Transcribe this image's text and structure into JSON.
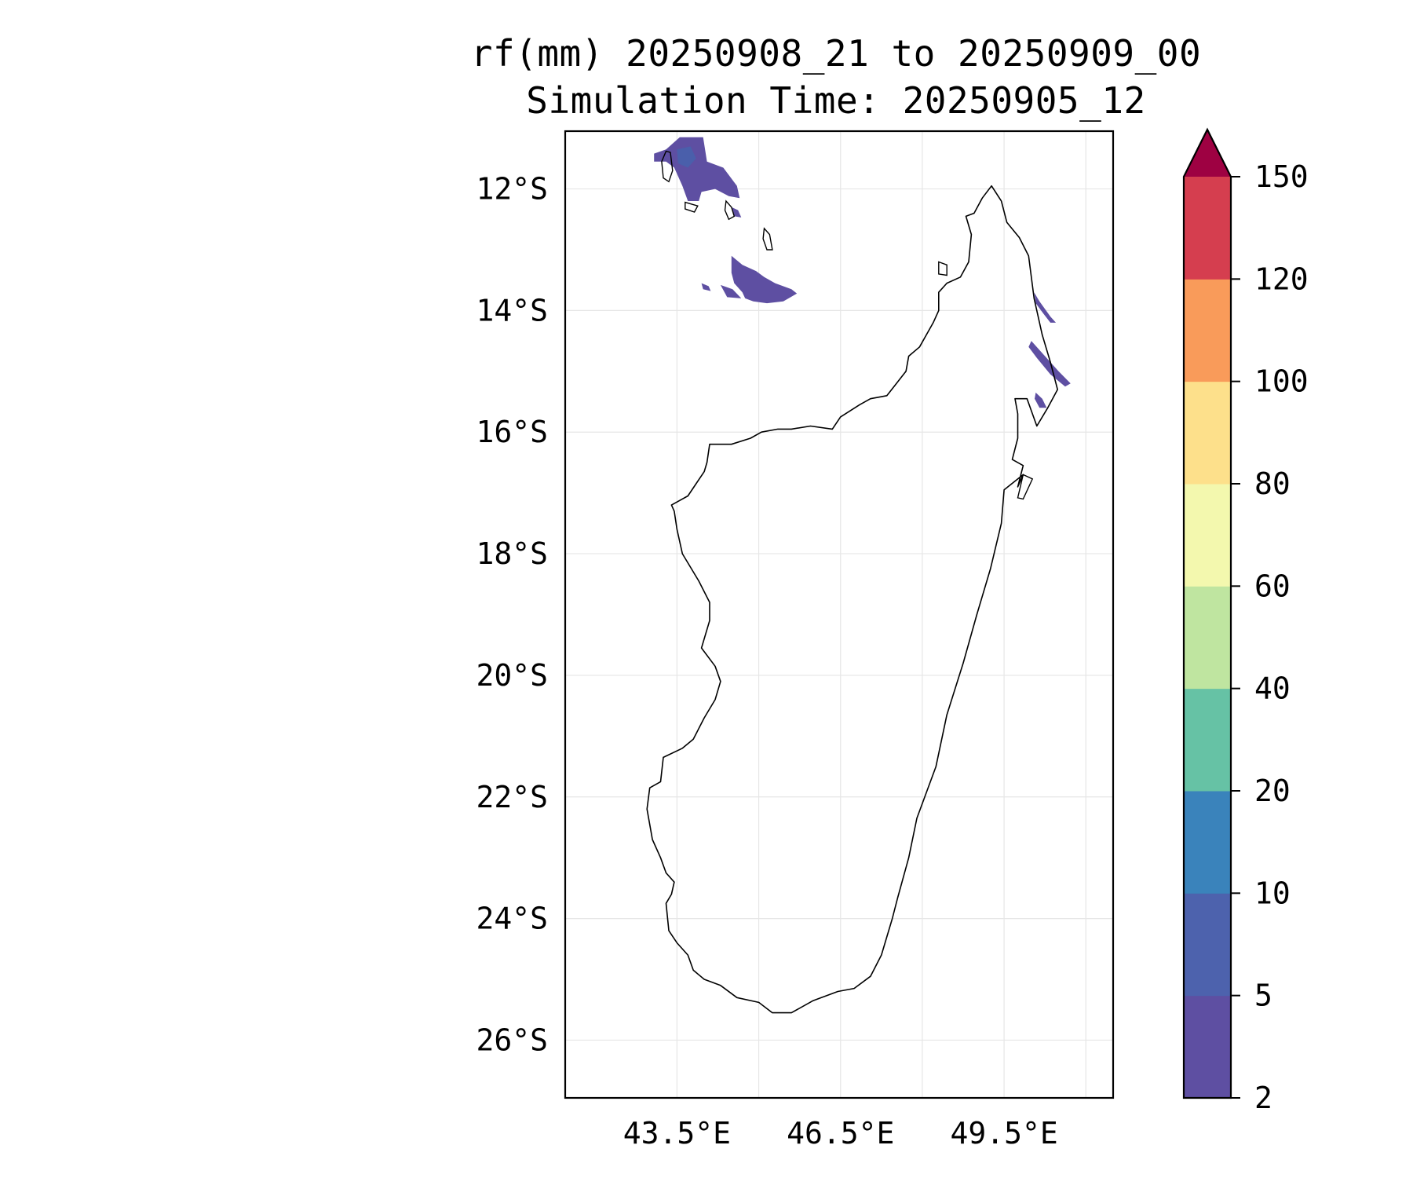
{
  "title": {
    "line1": "rf(mm) 20250908_21 to 20250909_00",
    "line2": "Simulation Time: 20250905_12"
  },
  "map": {
    "extent": {
      "lon_min": 41.45,
      "lon_max": 51.5,
      "lat_min": -26.95,
      "lat_max": -11.05
    },
    "lat_ticks": [
      {
        "value": -12,
        "label": "12°S"
      },
      {
        "value": -14,
        "label": "14°S"
      },
      {
        "value": -16,
        "label": "16°S"
      },
      {
        "value": -18,
        "label": "18°S"
      },
      {
        "value": -20,
        "label": "20°S"
      },
      {
        "value": -22,
        "label": "22°S"
      },
      {
        "value": -24,
        "label": "24°S"
      },
      {
        "value": -26,
        "label": "26°S"
      }
    ],
    "lon_ticks": [
      {
        "value": 43.5,
        "label": "43.5°E"
      },
      {
        "value": 46.5,
        "label": "46.5°E"
      },
      {
        "value": 49.5,
        "label": "49.5°E"
      }
    ],
    "grid_lons": [
      43.5,
      45.0,
      46.5,
      48.0,
      49.5,
      51.0
    ],
    "coastline": [
      [
        43.4,
        -17.2
      ],
      [
        43.45,
        -17.3
      ],
      [
        43.5,
        -17.6
      ],
      [
        43.6,
        -18.0
      ],
      [
        43.9,
        -18.45
      ],
      [
        44.1,
        -18.8
      ],
      [
        44.1,
        -19.1
      ],
      [
        43.95,
        -19.55
      ],
      [
        44.2,
        -19.85
      ],
      [
        44.3,
        -20.1
      ],
      [
        44.2,
        -20.4
      ],
      [
        44.0,
        -20.7
      ],
      [
        43.8,
        -21.05
      ],
      [
        43.6,
        -21.2
      ],
      [
        43.25,
        -21.35
      ],
      [
        43.2,
        -21.75
      ],
      [
        43.0,
        -21.85
      ],
      [
        42.95,
        -22.2
      ],
      [
        43.05,
        -22.7
      ],
      [
        43.2,
        -23.0
      ],
      [
        43.3,
        -23.25
      ],
      [
        43.45,
        -23.4
      ],
      [
        43.4,
        -23.6
      ],
      [
        43.3,
        -23.75
      ],
      [
        43.35,
        -24.2
      ],
      [
        43.5,
        -24.4
      ],
      [
        43.7,
        -24.6
      ],
      [
        43.8,
        -24.85
      ],
      [
        44.0,
        -25.0
      ],
      [
        44.3,
        -25.1
      ],
      [
        44.6,
        -25.3
      ],
      [
        45.0,
        -25.38
      ],
      [
        45.25,
        -25.55
      ],
      [
        45.6,
        -25.55
      ],
      [
        46.0,
        -25.35
      ],
      [
        46.45,
        -25.2
      ],
      [
        46.75,
        -25.15
      ],
      [
        47.05,
        -24.95
      ],
      [
        47.25,
        -24.6
      ],
      [
        47.45,
        -24.0
      ],
      [
        47.55,
        -23.65
      ],
      [
        47.75,
        -23.0
      ],
      [
        47.9,
        -22.35
      ],
      [
        48.25,
        -21.5
      ],
      [
        48.45,
        -20.65
      ],
      [
        48.75,
        -19.8
      ],
      [
        49.0,
        -19.0
      ],
      [
        49.25,
        -18.25
      ],
      [
        49.45,
        -17.5
      ],
      [
        49.5,
        -16.95
      ],
      [
        49.85,
        -16.7
      ],
      [
        49.75,
        -16.9
      ],
      [
        49.85,
        -16.55
      ],
      [
        49.65,
        -16.45
      ],
      [
        49.75,
        -16.1
      ],
      [
        49.75,
        -15.7
      ],
      [
        49.7,
        -15.45
      ],
      [
        49.92,
        -15.45
      ],
      [
        50.1,
        -15.9
      ],
      [
        50.3,
        -15.6
      ],
      [
        50.48,
        -15.3
      ],
      [
        50.35,
        -14.85
      ],
      [
        50.2,
        -14.4
      ],
      [
        50.05,
        -13.8
      ],
      [
        49.95,
        -13.1
      ],
      [
        49.78,
        -12.8
      ],
      [
        49.55,
        -12.55
      ],
      [
        49.45,
        -12.2
      ],
      [
        49.27,
        -11.95
      ],
      [
        49.1,
        -12.15
      ],
      [
        48.95,
        -12.4
      ],
      [
        48.8,
        -12.45
      ],
      [
        48.9,
        -12.75
      ],
      [
        48.85,
        -13.2
      ],
      [
        48.7,
        -13.45
      ],
      [
        48.45,
        -13.55
      ],
      [
        48.3,
        -13.7
      ],
      [
        48.3,
        -14.0
      ],
      [
        48.2,
        -14.2
      ],
      [
        47.95,
        -14.6
      ],
      [
        47.75,
        -14.75
      ],
      [
        47.7,
        -15.0
      ],
      [
        47.35,
        -15.4
      ],
      [
        47.05,
        -15.45
      ],
      [
        46.85,
        -15.55
      ],
      [
        46.5,
        -15.75
      ],
      [
        46.35,
        -15.95
      ],
      [
        45.95,
        -15.9
      ],
      [
        45.6,
        -15.95
      ],
      [
        45.35,
        -15.95
      ],
      [
        45.05,
        -16.0
      ],
      [
        44.85,
        -16.1
      ],
      [
        44.5,
        -16.2
      ],
      [
        44.25,
        -16.2
      ],
      [
        44.1,
        -16.2
      ],
      [
        44.05,
        -16.5
      ],
      [
        44.0,
        -16.65
      ],
      [
        43.85,
        -16.85
      ],
      [
        43.7,
        -17.05
      ],
      [
        43.4,
        -17.2
      ]
    ],
    "coast_islets": [
      [
        [
          43.3,
          -11.38
        ],
        [
          43.38,
          -11.4
        ],
        [
          43.42,
          -11.7
        ],
        [
          43.35,
          -11.88
        ],
        [
          43.25,
          -11.82
        ],
        [
          43.22,
          -11.55
        ],
        [
          43.3,
          -11.38
        ]
      ],
      [
        [
          43.65,
          -12.22
        ],
        [
          43.88,
          -12.28
        ],
        [
          43.82,
          -12.38
        ],
        [
          43.65,
          -12.33
        ],
        [
          43.65,
          -12.22
        ]
      ],
      [
        [
          44.4,
          -12.2
        ],
        [
          44.5,
          -12.3
        ],
        [
          44.55,
          -12.45
        ],
        [
          44.45,
          -12.5
        ],
        [
          44.38,
          -12.35
        ],
        [
          44.4,
          -12.2
        ]
      ],
      [
        [
          45.1,
          -12.65
        ],
        [
          45.2,
          -12.75
        ],
        [
          45.25,
          -13.0
        ],
        [
          45.15,
          -13.0
        ],
        [
          45.08,
          -12.82
        ],
        [
          45.1,
          -12.65
        ]
      ],
      [
        [
          48.3,
          -13.2
        ],
        [
          48.45,
          -13.25
        ],
        [
          48.45,
          -13.42
        ],
        [
          48.3,
          -13.4
        ],
        [
          48.3,
          -13.2
        ]
      ],
      [
        [
          49.85,
          -16.7
        ],
        [
          50.02,
          -16.77
        ],
        [
          49.85,
          -17.1
        ],
        [
          49.75,
          -17.08
        ],
        [
          49.85,
          -16.7
        ]
      ]
    ],
    "rain_shapes": [
      {
        "color": "#5e4fa2",
        "points": [
          [
            43.08,
            -11.42
          ],
          [
            43.3,
            -11.35
          ],
          [
            43.55,
            -11.15
          ],
          [
            43.98,
            -11.15
          ],
          [
            44.05,
            -11.55
          ],
          [
            44.35,
            -11.65
          ],
          [
            44.6,
            -11.95
          ],
          [
            44.65,
            -12.15
          ],
          [
            44.45,
            -12.12
          ],
          [
            44.2,
            -12.0
          ],
          [
            43.95,
            -12.05
          ],
          [
            43.9,
            -12.2
          ],
          [
            43.7,
            -12.2
          ],
          [
            43.6,
            -11.95
          ],
          [
            43.45,
            -11.65
          ],
          [
            43.3,
            -11.55
          ],
          [
            43.08,
            -11.55
          ],
          [
            43.08,
            -11.42
          ]
        ]
      },
      {
        "color": "#4a5fab",
        "points": [
          [
            43.5,
            -11.35
          ],
          [
            43.75,
            -11.3
          ],
          [
            43.85,
            -11.5
          ],
          [
            43.7,
            -11.65
          ],
          [
            43.52,
            -11.58
          ],
          [
            43.5,
            -11.35
          ]
        ]
      },
      {
        "color": "#5e4fa2",
        "points": [
          [
            44.5,
            -12.3
          ],
          [
            44.62,
            -12.35
          ],
          [
            44.68,
            -12.47
          ],
          [
            44.55,
            -12.45
          ],
          [
            44.5,
            -12.3
          ]
        ]
      },
      {
        "color": "#5e4fa2",
        "points": [
          [
            44.5,
            -13.1
          ],
          [
            44.7,
            -13.25
          ],
          [
            44.95,
            -13.35
          ],
          [
            45.1,
            -13.45
          ],
          [
            45.3,
            -13.55
          ],
          [
            45.6,
            -13.65
          ],
          [
            45.7,
            -13.72
          ],
          [
            45.45,
            -13.85
          ],
          [
            45.15,
            -13.88
          ],
          [
            44.9,
            -13.85
          ],
          [
            44.75,
            -13.8
          ],
          [
            44.7,
            -13.7
          ],
          [
            44.55,
            -13.55
          ],
          [
            44.5,
            -13.38
          ],
          [
            44.5,
            -13.1
          ]
        ]
      },
      {
        "color": "#5e4fa2",
        "points": [
          [
            44.3,
            -13.58
          ],
          [
            44.52,
            -13.65
          ],
          [
            44.68,
            -13.8
          ],
          [
            44.42,
            -13.78
          ],
          [
            44.3,
            -13.58
          ]
        ]
      },
      {
        "color": "#5e4fa2",
        "points": [
          [
            43.95,
            -13.55
          ],
          [
            44.08,
            -13.6
          ],
          [
            44.12,
            -13.68
          ],
          [
            43.98,
            -13.65
          ],
          [
            43.95,
            -13.55
          ]
        ]
      },
      {
        "color": "#5e4fa2",
        "points": [
          [
            50.05,
            -13.7
          ],
          [
            50.15,
            -13.85
          ],
          [
            50.35,
            -14.1
          ],
          [
            50.45,
            -14.2
          ],
          [
            50.35,
            -14.2
          ],
          [
            50.22,
            -14.05
          ],
          [
            50.08,
            -13.88
          ],
          [
            50.05,
            -13.7
          ]
        ]
      },
      {
        "color": "#5e4fa2",
        "points": [
          [
            50.0,
            -14.5
          ],
          [
            50.2,
            -14.7
          ],
          [
            50.5,
            -15.0
          ],
          [
            50.72,
            -15.2
          ],
          [
            50.62,
            -15.25
          ],
          [
            50.35,
            -15.05
          ],
          [
            50.1,
            -14.78
          ],
          [
            49.95,
            -14.6
          ],
          [
            50.0,
            -14.5
          ]
        ]
      },
      {
        "color": "#5e4fa2",
        "points": [
          [
            50.08,
            -15.35
          ],
          [
            50.2,
            -15.45
          ],
          [
            50.28,
            -15.6
          ],
          [
            50.15,
            -15.6
          ],
          [
            50.06,
            -15.45
          ],
          [
            50.08,
            -15.35
          ]
        ]
      }
    ]
  },
  "colorbar": {
    "levels": [
      "2",
      "5",
      "10",
      "20",
      "40",
      "60",
      "80",
      "100",
      "120",
      "150"
    ],
    "colors": [
      "#5e4fa2",
      "#4d62ad",
      "#3a83bb",
      "#66c2a5",
      "#bfe5a0",
      "#f3f8ae",
      "#fde08b",
      "#f99b5a",
      "#d53e4f"
    ],
    "extend_color": "#9e0142"
  }
}
